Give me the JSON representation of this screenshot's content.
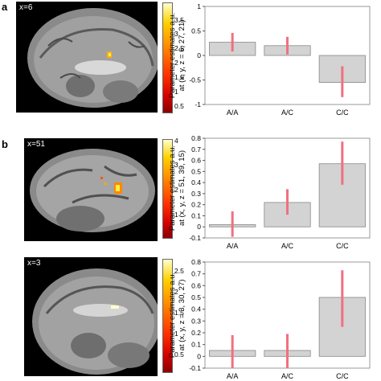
{
  "panels": {
    "a_label": "a",
    "b_label": "b"
  },
  "brains": [
    {
      "slice_label": "x=6",
      "colorbar_ticks": [
        "3.5",
        "3",
        "2.5",
        "2",
        "1.5",
        "1",
        "0.5"
      ]
    },
    {
      "slice_label": "x=51",
      "colorbar_ticks": [
        "4",
        "3",
        "2",
        "1"
      ]
    },
    {
      "slice_label": "x=3",
      "colorbar_ticks": [
        "2.5",
        "2",
        "1.5",
        "1",
        "0.5"
      ]
    }
  ],
  "chart_data": [
    {
      "type": "bar",
      "ylabel": "Parameter estimates a.u. at (x, y, z = 6, 27, 21)",
      "categories": [
        "A/A",
        "A/C",
        "C/C"
      ],
      "values": [
        0.27,
        0.2,
        -0.55
      ],
      "error_low": [
        0.08,
        0.02,
        -0.85
      ],
      "error_high": [
        0.46,
        0.38,
        -0.22
      ],
      "ylim": [
        -1,
        1
      ],
      "yticks": [
        -1,
        -0.5,
        0,
        0.5,
        1
      ],
      "ytick_labels": [
        "-1",
        "-0.5",
        "0",
        "0.5",
        "1"
      ],
      "bar_color": "#d3d3d3",
      "error_color": "#f07080"
    },
    {
      "type": "bar",
      "ylabel": "Parameter estimates a.u. at (x, y, z = 51, 39, 15)",
      "categories": [
        "A/A",
        "A/C",
        "C/C"
      ],
      "values": [
        0.02,
        0.22,
        0.57
      ],
      "error_low": [
        -0.09,
        0.11,
        0.38
      ],
      "error_high": [
        0.14,
        0.34,
        0.77
      ],
      "ylim": [
        -0.1,
        0.8
      ],
      "yticks": [
        -0.1,
        0,
        0.1,
        0.2,
        0.3,
        0.4,
        0.5,
        0.6,
        0.7,
        0.8
      ],
      "ytick_labels": [
        "-0.1",
        "0",
        "0.1",
        "0.2",
        "0.3",
        "0.4",
        "0.5",
        "0.6",
        "0.7",
        "0.8"
      ],
      "bar_color": "#d3d3d3",
      "error_color": "#f07080"
    },
    {
      "type": "bar",
      "ylabel": "Parameter estimates a.u. at (x, y, z = 3, 30, 27)",
      "categories": [
        "A/A",
        "A/C",
        "C/C"
      ],
      "values": [
        0.05,
        0.05,
        0.5
      ],
      "error_low": [
        -0.1,
        -0.1,
        0.25
      ],
      "error_high": [
        0.18,
        0.19,
        0.73
      ],
      "ylim": [
        -0.1,
        0.8
      ],
      "yticks": [
        -0.1,
        0,
        0.1,
        0.2,
        0.3,
        0.4,
        0.5,
        0.6,
        0.7,
        0.8
      ],
      "ytick_labels": [
        "-0.1",
        "0",
        "0.1",
        "0.2",
        "0.3",
        "0.4",
        "0.5",
        "0.6",
        "0.7",
        "0.8"
      ],
      "bar_color": "#d3d3d3",
      "error_color": "#f07080"
    }
  ]
}
